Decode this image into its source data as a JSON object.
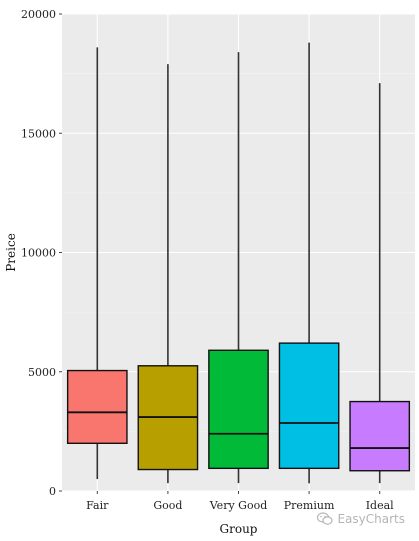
{
  "chart_data": {
    "type": "boxplot",
    "xlabel": "Group",
    "ylabel": "Preice",
    "ylim": [
      0,
      20000
    ],
    "yticks": [
      0,
      5000,
      10000,
      15000,
      20000
    ],
    "grid": true,
    "categories": [
      "Fair",
      "Good",
      "Very Good",
      "Premium",
      "Ideal"
    ],
    "boxes": [
      {
        "category": "Fair",
        "min": 500,
        "q1": 2000,
        "median": 3300,
        "q3": 5050,
        "max": 18600,
        "color": "#F8766D"
      },
      {
        "category": "Good",
        "min": 330,
        "q1": 900,
        "median": 3100,
        "q3": 5250,
        "max": 17900,
        "color": "#B79F00"
      },
      {
        "category": "Very Good",
        "min": 330,
        "q1": 950,
        "median": 2400,
        "q3": 5900,
        "max": 18400,
        "color": "#00BA38"
      },
      {
        "category": "Premium",
        "min": 320,
        "q1": 950,
        "median": 2850,
        "q3": 6200,
        "max": 18800,
        "color": "#00BFE4"
      },
      {
        "category": "Ideal",
        "min": 330,
        "q1": 850,
        "median": 1800,
        "q3": 3750,
        "max": 17100,
        "color": "#C77CFF"
      }
    ]
  },
  "watermark": {
    "text": "EasyCharts",
    "icon": "wechat-icon"
  }
}
